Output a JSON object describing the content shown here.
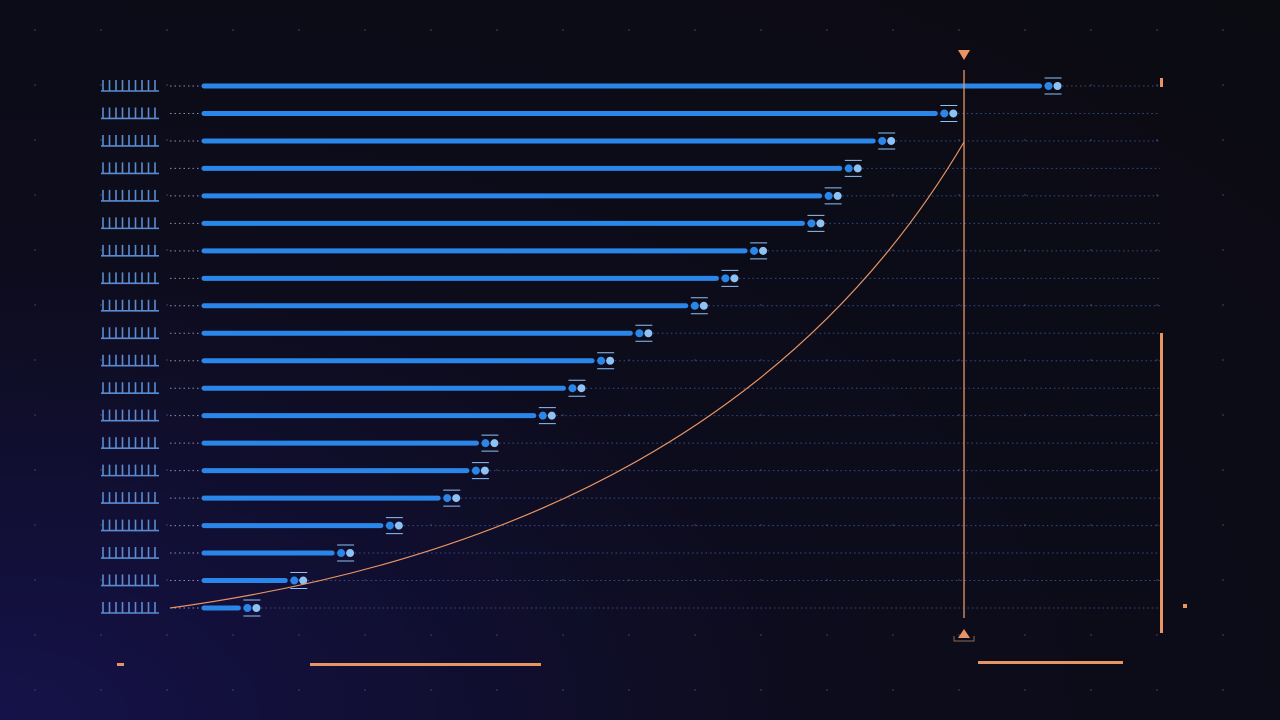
{
  "chart_data": {
    "type": "bar",
    "orientation": "horizontal",
    "title": "",
    "xlabel": "",
    "ylabel": "",
    "xlim": [
      0,
      100
    ],
    "grid": true,
    "legend": "none",
    "values": [
      87.4,
      76.5,
      70.0,
      66.5,
      64.4,
      62.6,
      56.6,
      53.6,
      50.4,
      44.6,
      40.6,
      37.6,
      34.5,
      28.5,
      27.5,
      24.5,
      18.5,
      13.4,
      8.5,
      3.6
    ],
    "cumulative_curve": true,
    "marker_line_at": 79.5,
    "colors": {
      "bar": "#2a86e8",
      "dot_a": "#2a86e8",
      "dot_b": "#8ec2f4",
      "label_glyph": "#5a8bd0",
      "accent": "#e89563",
      "gridline": "#3a5fa8",
      "background": "#0b0b12"
    }
  }
}
